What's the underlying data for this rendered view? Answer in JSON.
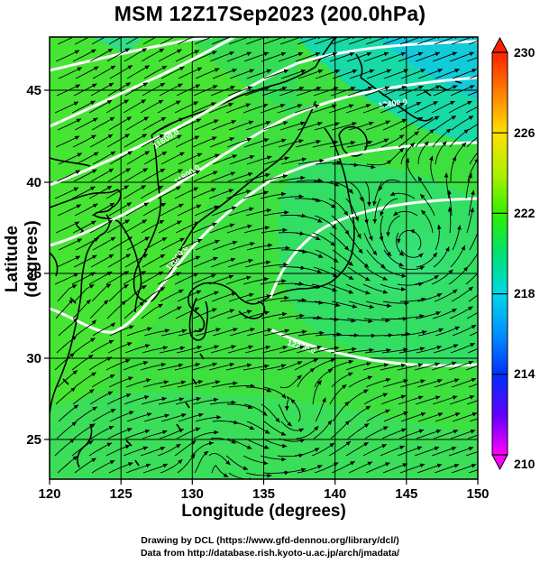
{
  "title": "MSM 12Z17Sep2023 (200.0hPa)",
  "xlabel": "Longitude (degrees)",
  "ylabel": "Latitude  (degrees)",
  "credit_line1": "Drawing by DCL (https://www.gfd-dennou.org/library/dcl/)",
  "credit_line2": "Data from http://database.rish.kyoto-u.ac.jp/arch/jmadata/",
  "map": {
    "lon_range": [
      120,
      150
    ],
    "lat_range": [
      22.4,
      47.6
    ],
    "lon_ticks": [
      120,
      125,
      130,
      135,
      140,
      145,
      150
    ],
    "lat_ticks": [
      25,
      30,
      35,
      40,
      45
    ],
    "contour_labels": [
      "11600.0",
      "11800.0",
      "12000.0",
      "12200.0",
      "12400.0"
    ],
    "cyclone_center": {
      "lon": 145.5,
      "lat": 35.5
    }
  },
  "colorbar": {
    "min": 210,
    "max": 230,
    "tick_labels": [
      "210",
      "214",
      "218",
      "222",
      "226",
      "230"
    ],
    "colors": [
      "#ff00ff",
      "#6000ff",
      "#0030ff",
      "#00a8ff",
      "#00e8d8",
      "#00e060",
      "#40f000",
      "#c0f000",
      "#ffe000",
      "#ff8000",
      "#ff2000"
    ]
  }
}
